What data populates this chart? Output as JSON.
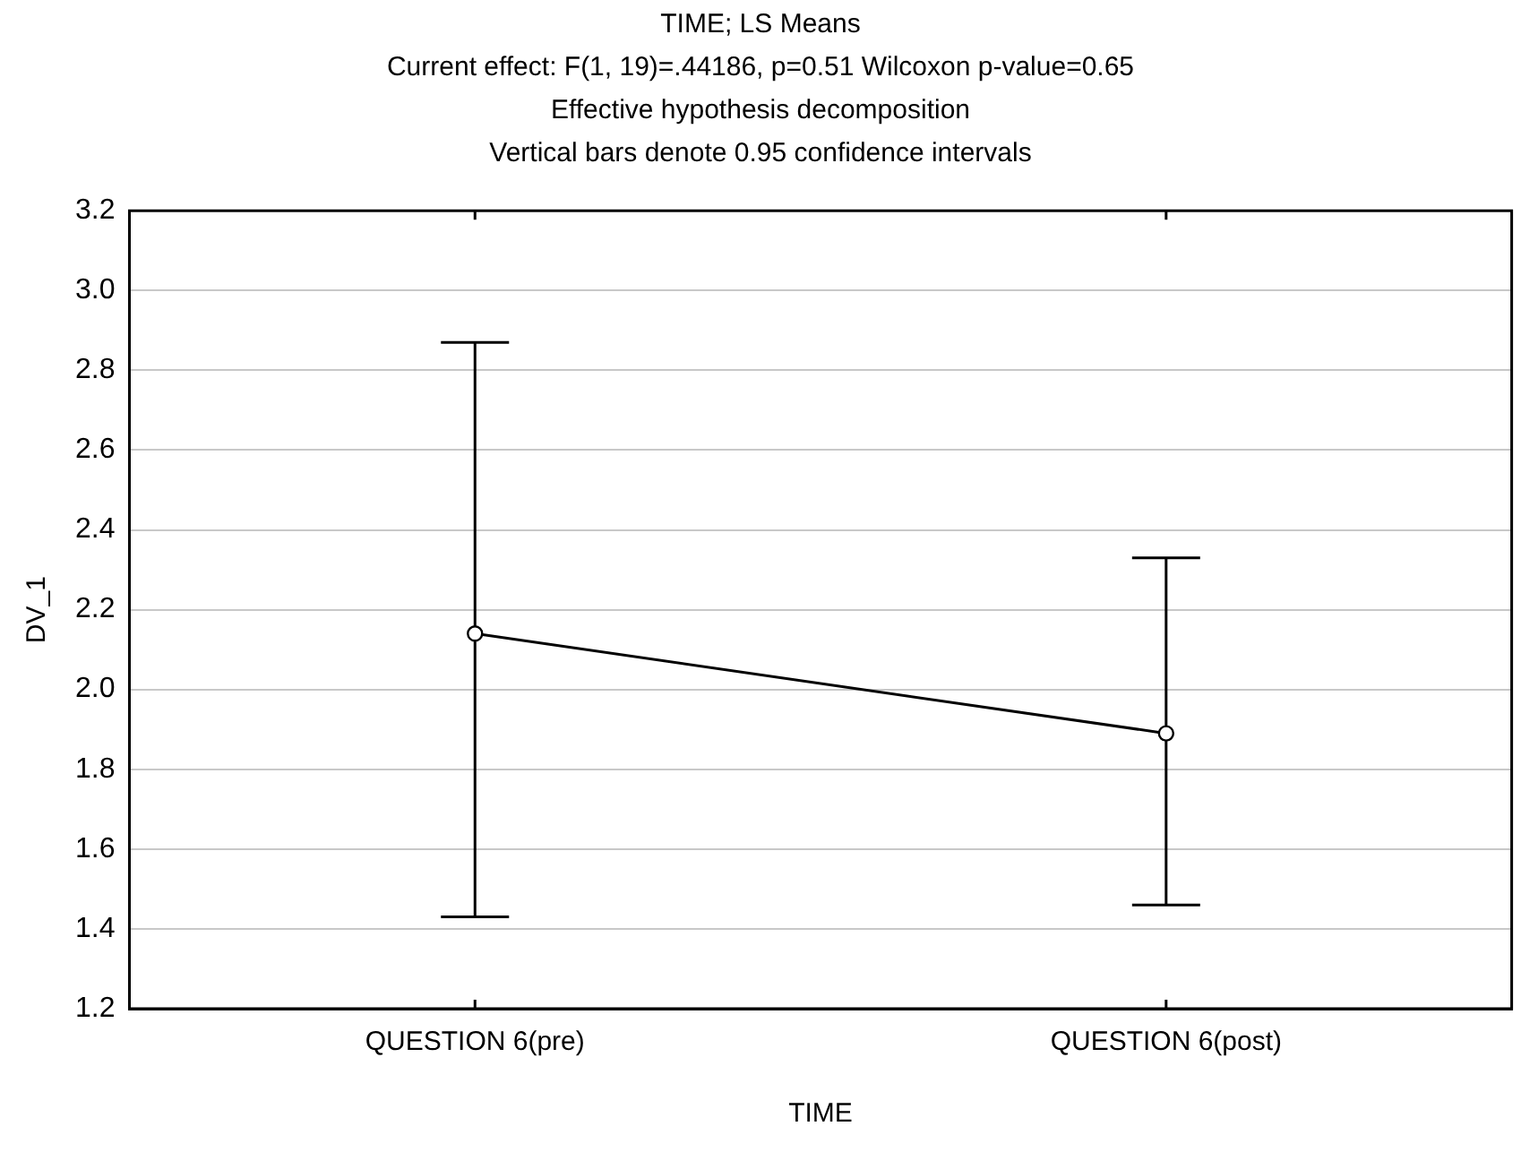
{
  "chart_data": {
    "type": "line",
    "title": "TIME; LS Means",
    "subtitle": "Current effect: F(1, 19)=.44186, p=0.51 Wilcoxon p-value=0.65",
    "annotations": [
      "Effective hypothesis decomposition",
      "Vertical bars denote 0.95 confidence intervals"
    ],
    "xlabel": "TIME",
    "ylabel": "DV_1",
    "categories": [
      "QUESTION 6(pre)",
      "QUESTION 6(post)"
    ],
    "series": [
      {
        "color": "#000000",
        "values": [
          2.14,
          1.89
        ],
        "errors": [
          [
            1.43,
            2.87
          ],
          [
            1.46,
            2.33
          ]
        ]
      }
    ],
    "ylim": [
      1.2,
      3.2
    ],
    "yticks": [
      1.2,
      1.4,
      1.6,
      1.8,
      {
        "value": 2,
        "label": "2.0"
      },
      2.2,
      2.4,
      2.6,
      2.8,
      {
        "value": 3,
        "label": "3.0"
      },
      3.2
    ],
    "grid": "y",
    "legend": false,
    "marker": "circle",
    "line_style": "solid"
  }
}
